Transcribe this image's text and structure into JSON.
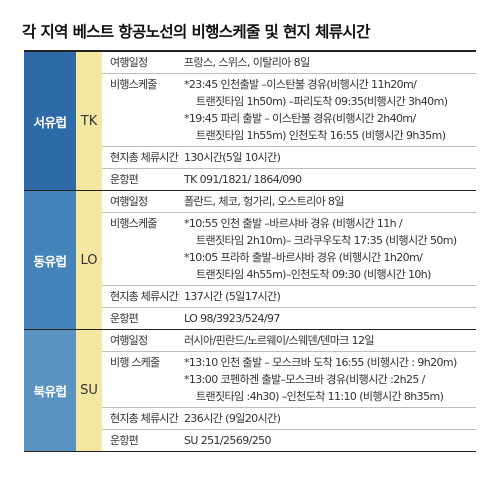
{
  "title": "각 지역 베스트 항공노선의 비행스케줄 및 현지 체류시간",
  "regions": [
    {
      "name": "서유럽",
      "code": "TK",
      "itinerary_label": "여행일정",
      "itinerary": "프랑스, 스위스, 이탈리아 8일",
      "schedule_label": "비행스케줄",
      "schedule_lines": [
        "*23:45 인천출발 –이스탄불 경유(비행시간 11h20m/",
        "트랜짓타임 1h50m) –파리도착 09:35(비행시간 3h40m)",
        "*19:45 파리 출발 – 이스탄불 경유(비행시간 2h40m/",
        "트랜짓타임 1h55m) 인천도착 16:55 (비행시간 9h35m)"
      ],
      "stay_label": "현지총 체류시간",
      "stay": "130시간(5일 10시간)",
      "flights_label": "운항편",
      "flights": "TK 091/1821/ 1864/090"
    },
    {
      "name": "동유럽",
      "code": "LO",
      "itinerary_label": "여행일정",
      "itinerary": "폴란드, 체코, 헝가리, 오스트리아 8일",
      "schedule_label": "비행스케줄",
      "schedule_lines": [
        "*10:55 인천 출발 –바르샤바 경유 (비행시간 11h /",
        "트랜짓타임 2h10m)– 크라쿠우도착 17:35 (비행시간 50m)",
        "*10:05 프라하 출발–바르샤바 경유 (비행시간 1h20m/",
        "트랜짓타임 4h55m)–인천도착 09:30 (비행시간 10h)"
      ],
      "stay_label": "현지총 체류시간",
      "stay": "137시간 (5일17시간)",
      "flights_label": "운항편",
      "flights": "LO 98/3923/524/97"
    },
    {
      "name": "북유럽",
      "code": "SU",
      "itinerary_label": "여행일정",
      "itinerary": "러시아/핀란드/노르웨이/스웨덴/덴마크 12일",
      "schedule_label": "비행 스케줄",
      "schedule_lines": [
        "*13:10 인천 출발 – 모스크바 도착 16:55 (비행시간 : 9h20m)",
        "*13:00 코펜하겐 출발–모스크바 경유(비행시간 :2h25 /",
        "트랜짓타임 :4h30) –인천도착 11:10 (비행시간 8h35m)"
      ],
      "schedule_indent": [
        false,
        false,
        true
      ],
      "stay_label": "현지총 체류시간",
      "stay": "236시간 (9일20시간)",
      "flights_label": "운항편",
      "flights": "SU 251/2569/250"
    }
  ],
  "colors": {
    "west_europe": "#2e6aa8",
    "east_europe": "#4584b9",
    "north_europe": "#5a92c2",
    "code_cell": "#f3e7a1"
  }
}
